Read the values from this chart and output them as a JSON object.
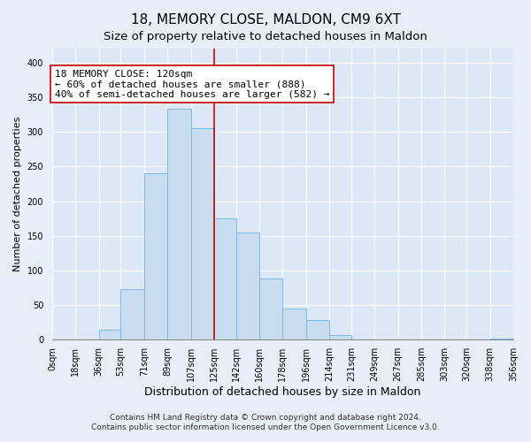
{
  "title": "18, MEMORY CLOSE, MALDON, CM9 6XT",
  "subtitle": "Size of property relative to detached houses in Maldon",
  "xlabel": "Distribution of detached houses by size in Maldon",
  "ylabel": "Number of detached properties",
  "bin_labels": [
    "0sqm",
    "18sqm",
    "36sqm",
    "53sqm",
    "71sqm",
    "89sqm",
    "107sqm",
    "125sqm",
    "142sqm",
    "160sqm",
    "178sqm",
    "196sqm",
    "214sqm",
    "231sqm",
    "249sqm",
    "267sqm",
    "285sqm",
    "303sqm",
    "320sqm",
    "338sqm",
    "356sqm"
  ],
  "bin_edges": [
    0,
    18,
    36,
    53,
    71,
    89,
    107,
    125,
    142,
    160,
    178,
    196,
    214,
    231,
    249,
    267,
    285,
    303,
    320,
    338,
    356
  ],
  "bar_heights": [
    0,
    0,
    15,
    73,
    240,
    333,
    305,
    175,
    155,
    88,
    45,
    28,
    7,
    0,
    0,
    0,
    1,
    0,
    0,
    2
  ],
  "bar_color": "#c8ddf0",
  "bar_edge_color": "#7abbe8",
  "vline_x": 125,
  "vline_color": "#cc0000",
  "annotation_text": "18 MEMORY CLOSE: 120sqm\n← 60% of detached houses are smaller (888)\n40% of semi-detached houses are larger (582) →",
  "annotation_box_facecolor": "#ffffff",
  "annotation_box_edgecolor": "#cc0000",
  "ylim": [
    0,
    420
  ],
  "yticks": [
    0,
    50,
    100,
    150,
    200,
    250,
    300,
    350,
    400
  ],
  "footer1": "Contains HM Land Registry data © Crown copyright and database right 2024.",
  "footer2": "Contains public sector information licensed under the Open Government Licence v3.0.",
  "fig_facecolor": "#e8eef8",
  "ax_facecolor": "#dce8f5",
  "grid_color": "#ffffff",
  "title_fontsize": 11,
  "subtitle_fontsize": 9.5,
  "xlabel_fontsize": 9,
  "ylabel_fontsize": 8,
  "tick_fontsize": 7,
  "annotation_fontsize": 8,
  "footer_fontsize": 6.5
}
